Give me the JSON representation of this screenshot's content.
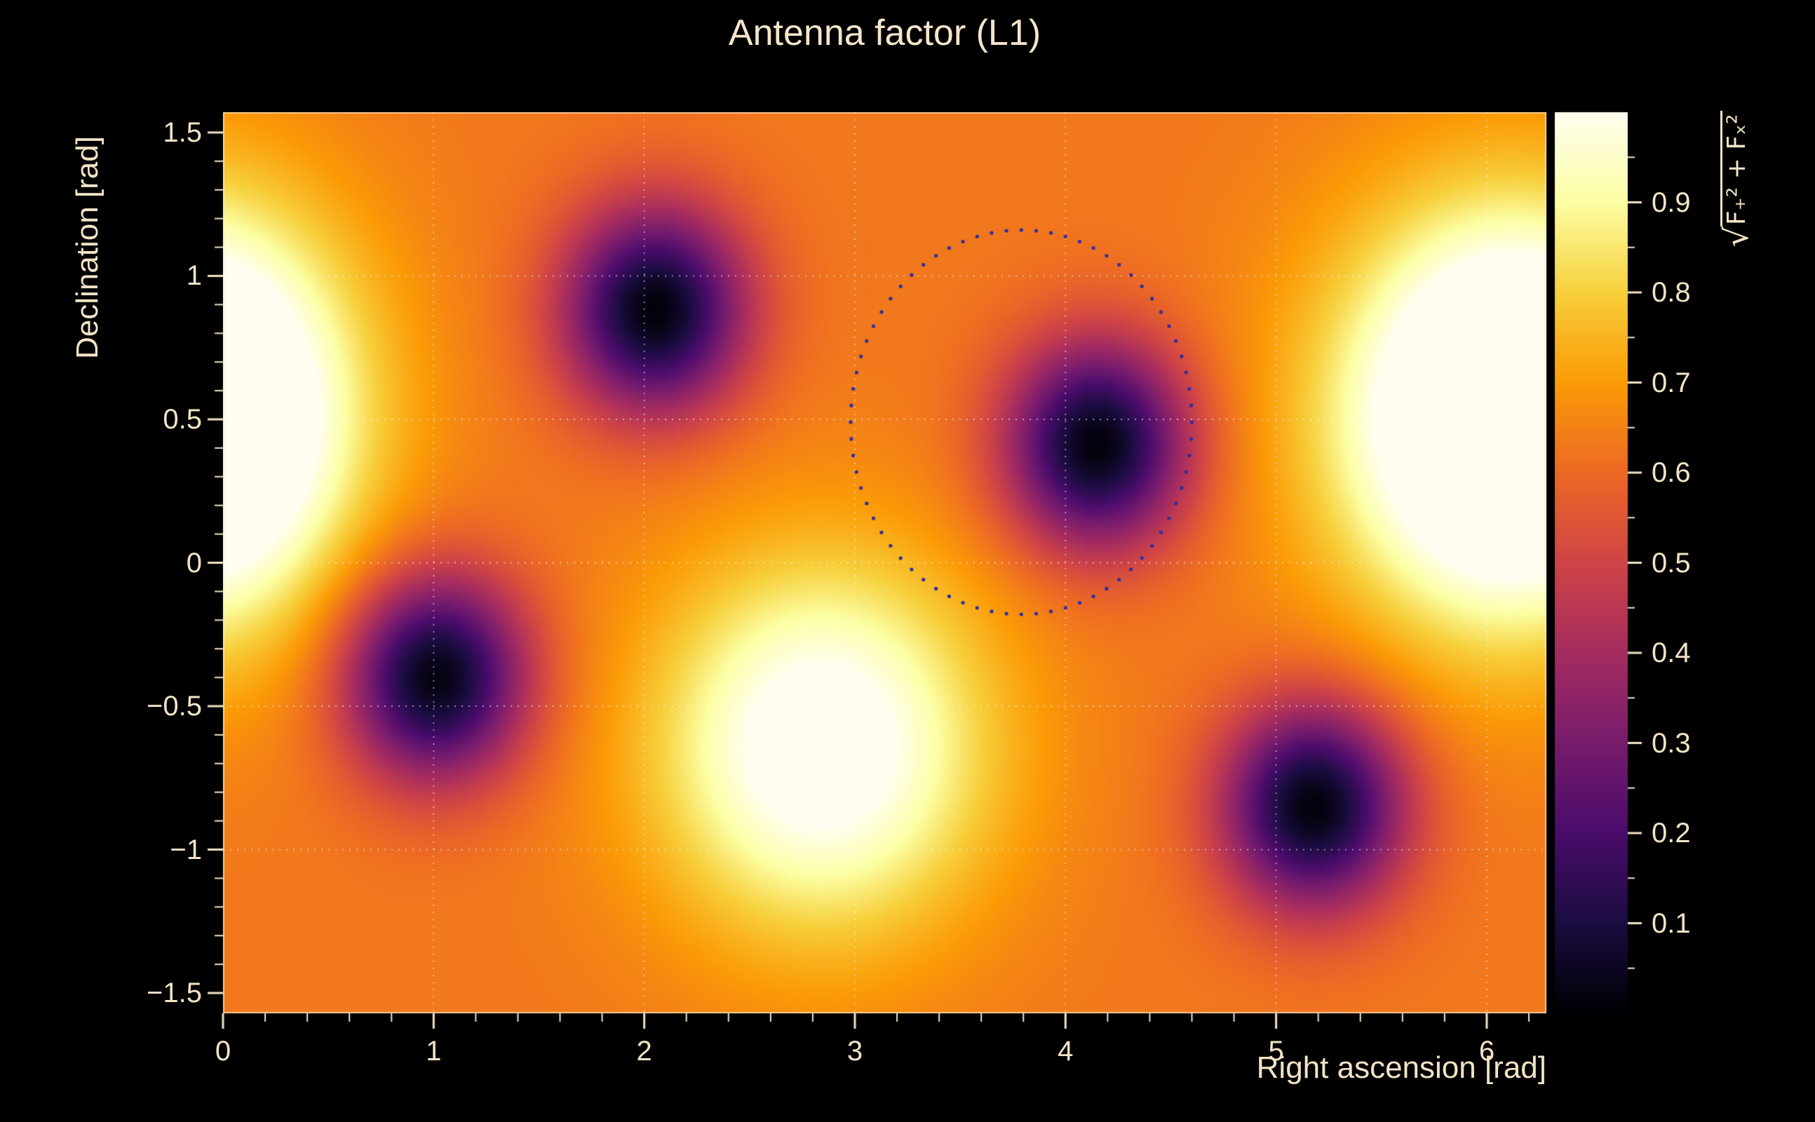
{
  "figure": {
    "title": "Antenna factor (L1)",
    "background": "#000000",
    "text_color": "#f2e3c6"
  },
  "axes": {
    "x": {
      "title": "Right ascension [rad]",
      "min": 0,
      "max": 6.2832,
      "major_ticks": [
        {
          "v": 0,
          "label": "0"
        },
        {
          "v": 1,
          "label": "1"
        },
        {
          "v": 2,
          "label": "2"
        },
        {
          "v": 3,
          "label": "3"
        },
        {
          "v": 4,
          "label": "4"
        },
        {
          "v": 5,
          "label": "5"
        },
        {
          "v": 6,
          "label": "6"
        }
      ],
      "minor_step": 0.2
    },
    "y": {
      "title": "Declination [rad]",
      "min": -1.5708,
      "max": 1.5708,
      "major_ticks": [
        {
          "v": -1.5,
          "label": "−1.5"
        },
        {
          "v": -1,
          "label": "−1"
        },
        {
          "v": -0.5,
          "label": "−0.5"
        },
        {
          "v": 0,
          "label": "0"
        },
        {
          "v": 0.5,
          "label": "0.5"
        },
        {
          "v": 1,
          "label": "1"
        },
        {
          "v": 1.5,
          "label": "1.5"
        }
      ],
      "minor_step": 0.1
    }
  },
  "colorbar": {
    "min": 0,
    "max": 1,
    "radical": "√",
    "label": "F₊² + Fₓ²",
    "major_ticks": [
      {
        "v": 0.1,
        "label": "0.1"
      },
      {
        "v": 0.2,
        "label": "0.2"
      },
      {
        "v": 0.3,
        "label": "0.3"
      },
      {
        "v": 0.4,
        "label": "0.4"
      },
      {
        "v": 0.5,
        "label": "0.5"
      },
      {
        "v": 0.6,
        "label": "0.6"
      },
      {
        "v": 0.7,
        "label": "0.7"
      },
      {
        "v": 0.8,
        "label": "0.8"
      },
      {
        "v": 0.9,
        "label": "0.9"
      }
    ],
    "minor_step": 0.05
  },
  "chart_data": {
    "type": "heatmap",
    "title": "Antenna factor (L1)",
    "xlabel": "Right ascension [rad]",
    "ylabel": "Declination [rad]",
    "zlabel": "sqrt(F+^2 + Fx^2)",
    "x_range": [
      0,
      6.2832
    ],
    "y_range": [
      -1.5708,
      1.5708
    ],
    "z_range": [
      0,
      1
    ],
    "periodic_x": true,
    "base_value": 0.63,
    "maxima": [
      {
        "ra": 0.0,
        "dec": 0.52,
        "amp": 0.37,
        "sx": 0.48,
        "sy": 0.48
      },
      {
        "ra": 2.84,
        "dec": -0.64,
        "amp": 0.45,
        "sx": 0.55,
        "sy": 0.45
      },
      {
        "ra": 5.93,
        "dec": 0.5,
        "amp": 0.4,
        "sx": 0.55,
        "sy": 0.5
      }
    ],
    "minima": [
      {
        "ra": 2.05,
        "dec": 0.88,
        "depth": 0.62,
        "sx": 0.3,
        "sy": 0.25
      },
      {
        "ra": 4.15,
        "dec": 0.41,
        "depth": 0.62,
        "sx": 0.3,
        "sy": 0.25
      },
      {
        "ra": 1.01,
        "dec": -0.4,
        "depth": 0.62,
        "sx": 0.3,
        "sy": 0.25
      },
      {
        "ra": 5.18,
        "dec": -0.85,
        "depth": 0.62,
        "sx": 0.3,
        "sy": 0.25
      }
    ],
    "grid": {
      "x_lines": [
        1,
        2,
        3,
        4,
        5,
        6
      ],
      "y_lines": [
        -1,
        -0.5,
        0,
        0.5,
        1
      ],
      "color": "rgba(255,255,255,0.55)",
      "style": "dotted"
    },
    "overlay_circle": {
      "ra": 3.79,
      "dec": 0.49,
      "rx": 0.81,
      "ry": 0.67,
      "n_dots": 72,
      "dot_radius": 2.6,
      "color": "#2f2f9e",
      "style": "dotted"
    },
    "colormap": {
      "name": "inferno-like",
      "stops": [
        [
          0.0,
          "#000004"
        ],
        [
          0.1,
          "#1b0c41"
        ],
        [
          0.2,
          "#4a0c6b"
        ],
        [
          0.3,
          "#781c6d"
        ],
        [
          0.4,
          "#a52c60"
        ],
        [
          0.5,
          "#cf4446"
        ],
        [
          0.6,
          "#ed6925"
        ],
        [
          0.7,
          "#fb9b06"
        ],
        [
          0.8,
          "#f7d03c"
        ],
        [
          0.9,
          "#fcffa4"
        ],
        [
          1.0,
          "#fffdf0"
        ]
      ]
    },
    "legend_position": "right-colorbar",
    "grid_on": true
  }
}
